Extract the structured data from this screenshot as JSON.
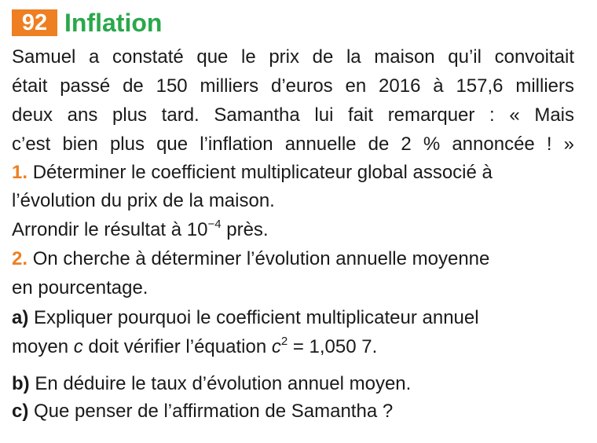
{
  "exercise": {
    "number": "92",
    "title": "Inflation"
  },
  "intro": [
    "Samuel a constaté que le prix de la maison qu’il convoitait",
    "était passé de 150 milliers d’euros en 2016 à 157,6 milliers",
    "deux ans plus tard. Samantha lui fait remarquer : « Mais",
    "c’est bien plus que l’inflation annuelle de 2 % annoncée ! »"
  ],
  "q1": {
    "label": "1.",
    "line1": "Déterminer le coefficient multiplicateur global associé à",
    "line2": "l’évolution du prix de la maison.",
    "line3_pre": "Arrondir le résultat à 10",
    "line3_exp": "−4",
    "line3_post": " près."
  },
  "q2": {
    "label": "2.",
    "line1": "On cherche à déterminer l’évolution annuelle moyenne",
    "line2": "en pourcentage."
  },
  "qa": {
    "label": "a)",
    "line1": "Expliquer pourquoi le coefficient multiplicateur annuel",
    "line2_pre": "moyen ",
    "line2_var": "c",
    "line2_mid": " doit vérifier l’équation ",
    "line2_var2": "c",
    "line2_exp": "2",
    "line2_post": " = 1,050 7."
  },
  "qb": {
    "label": "b)",
    "text": "En déduire le taux d’évolution annuel moyen."
  },
  "qc": {
    "label": "c)",
    "text": "Que penser de l’affirmation de Samantha ?"
  }
}
